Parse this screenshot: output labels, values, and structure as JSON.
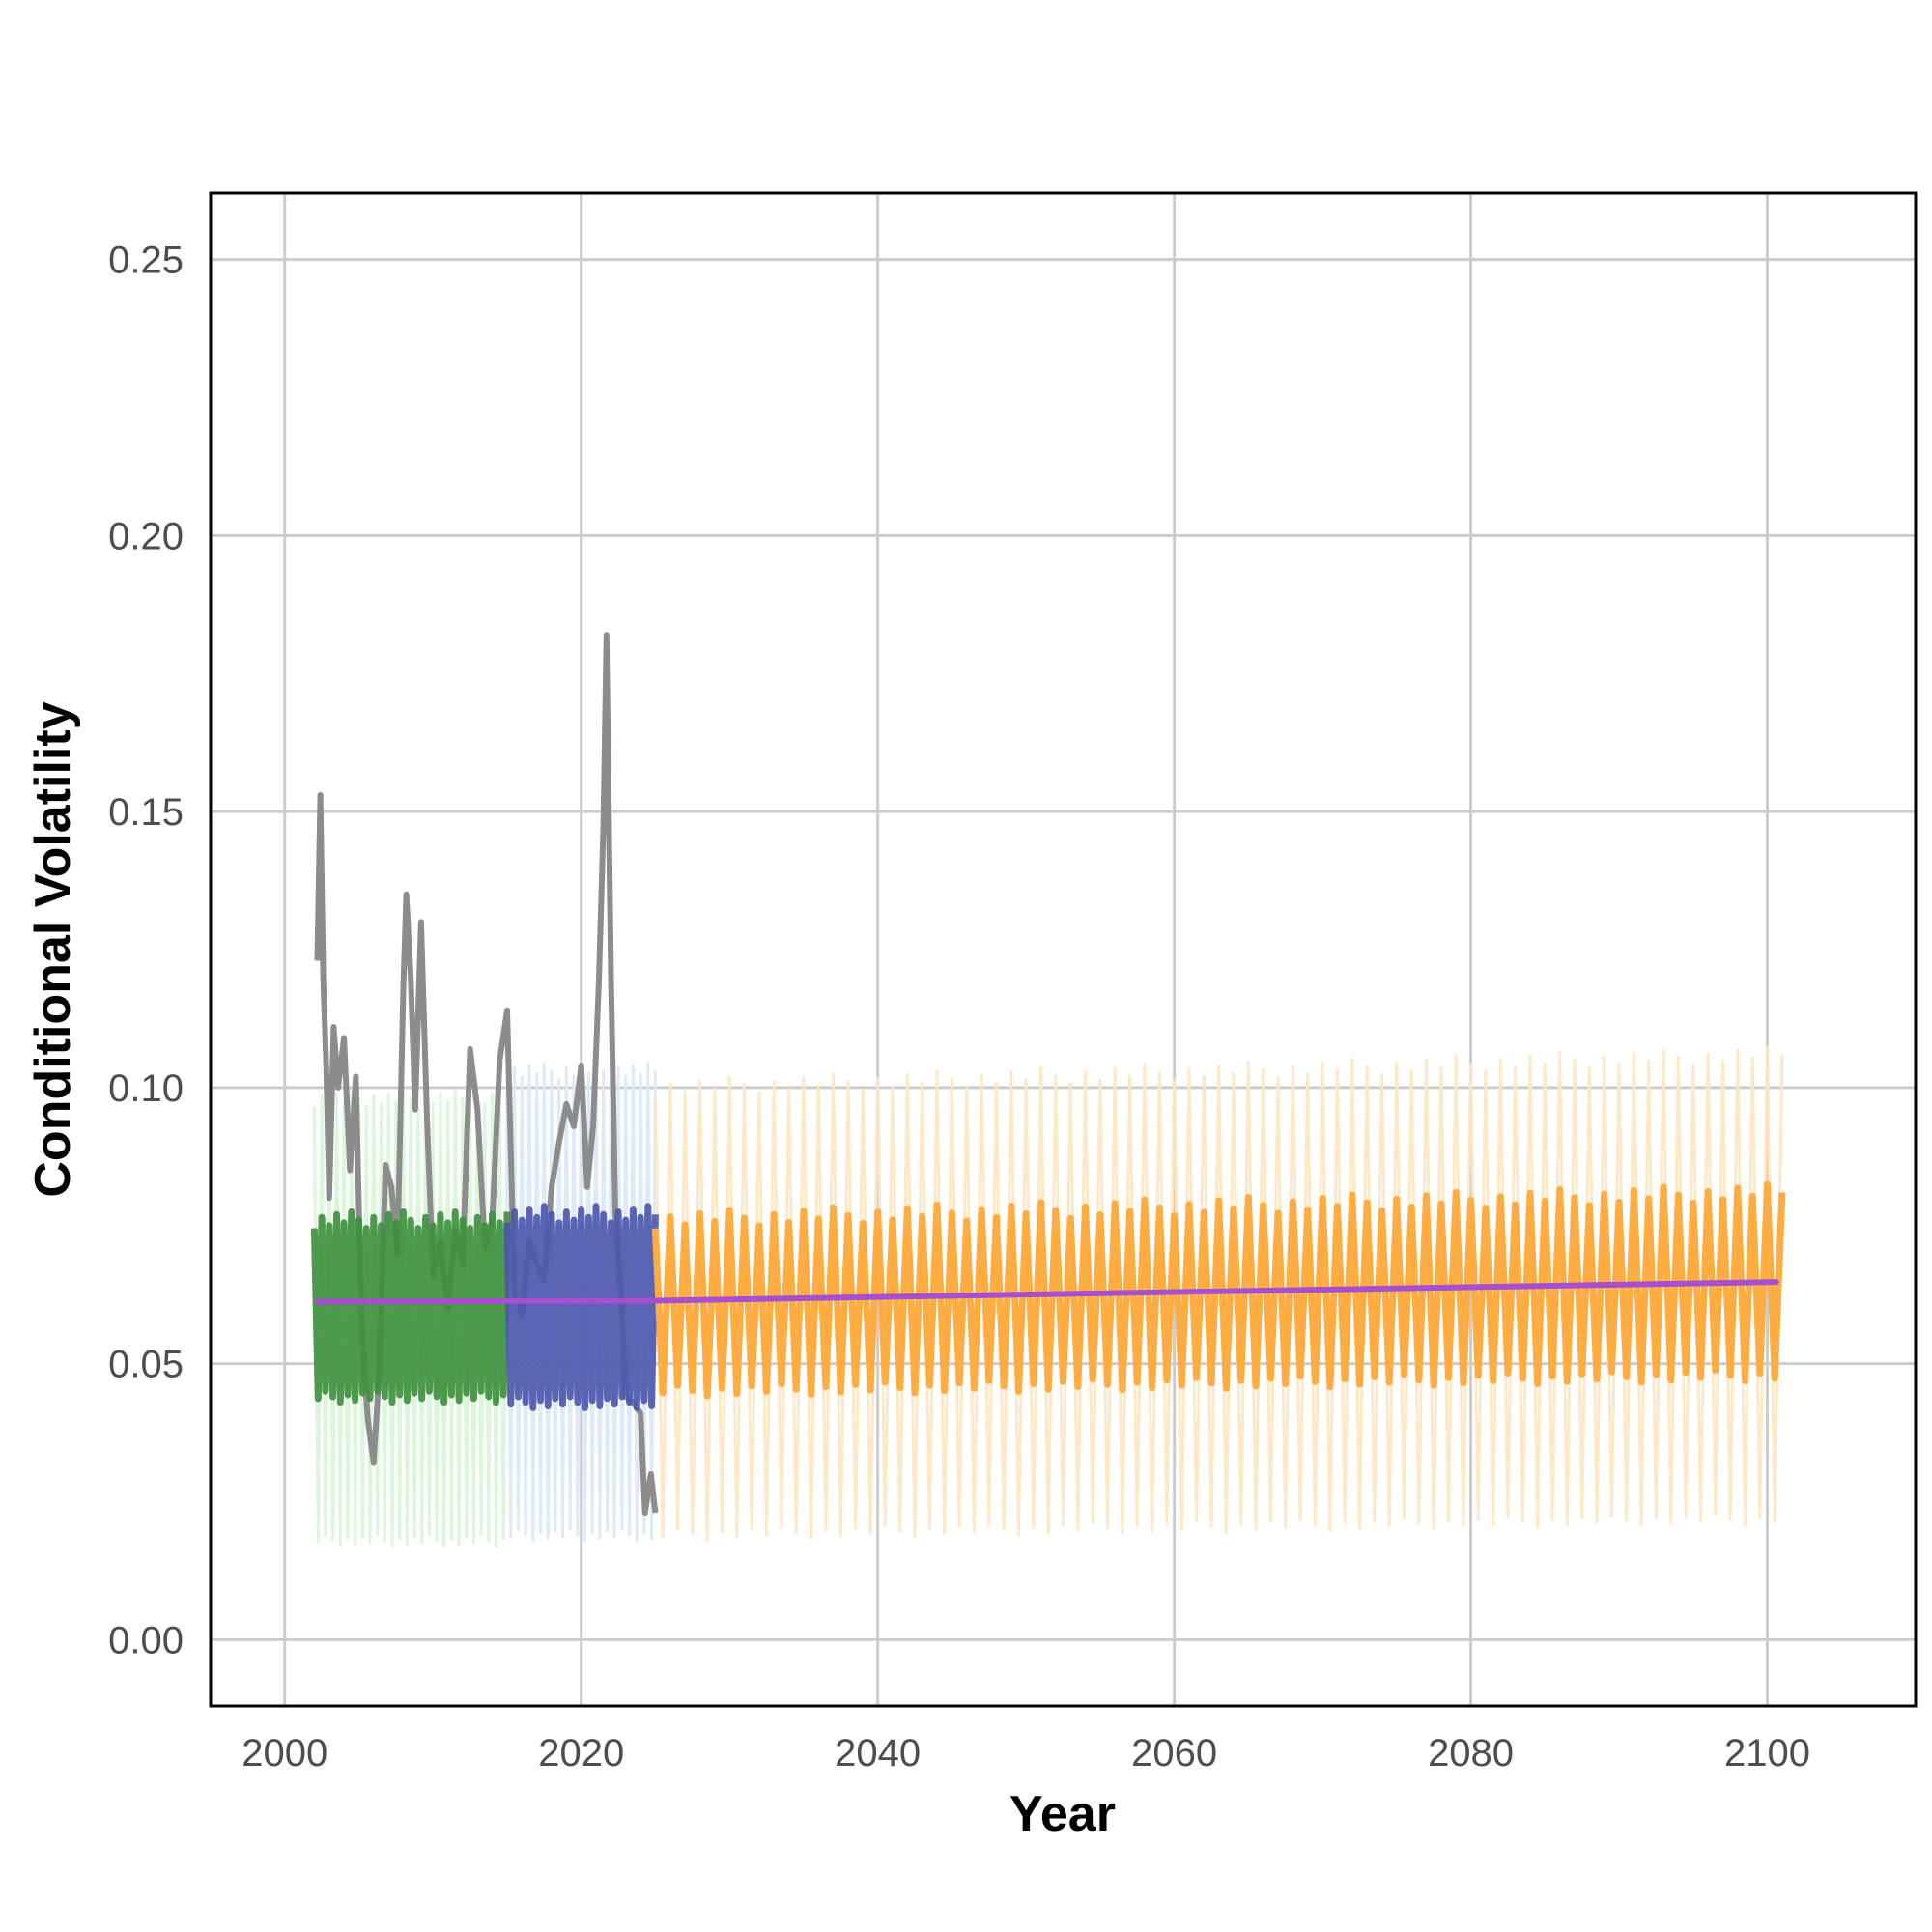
{
  "chart_data": {
    "type": "line",
    "title": "",
    "xlabel": "Year",
    "ylabel": "Conditional Volatility",
    "xlim": [
      1995,
      2110
    ],
    "ylim": [
      -0.012,
      0.262
    ],
    "x_ticks": [
      2000,
      2020,
      2040,
      2060,
      2080,
      2100
    ],
    "x_tick_labels": [
      "2000",
      "2020",
      "2040",
      "2060",
      "2080",
      "2100"
    ],
    "y_ticks": [
      0.0,
      0.05,
      0.1,
      0.15,
      0.2,
      0.25
    ],
    "y_tick_labels": [
      "0.00",
      "0.05",
      "0.10",
      "0.15",
      "0.20",
      "0.25"
    ],
    "grid": true,
    "legend": "none",
    "series": [
      {
        "kind": "observed",
        "color": "#8c8c8c",
        "x": [
          2002.2,
          2002.4,
          2002.6,
          2002.8,
          2003.0,
          2003.3,
          2003.6,
          2004.0,
          2004.4,
          2004.8,
          2005.2,
          2005.6,
          2006.0,
          2006.4,
          2006.8,
          2007.2,
          2007.6,
          2008.0,
          2008.2,
          2008.5,
          2008.8,
          2009.2,
          2009.6,
          2010.0,
          2010.5,
          2011.0,
          2011.5,
          2012.0,
          2012.5,
          2013.0,
          2013.5,
          2014.0,
          2014.5,
          2015.0,
          2015.5,
          2016.0,
          2016.5,
          2017.0,
          2017.5,
          2018.0,
          2018.5,
          2019.0,
          2019.5,
          2020.0,
          2020.4,
          2020.8,
          2021.2,
          2021.5,
          2021.7,
          2022.0,
          2022.3,
          2022.7,
          2023.0,
          2023.5,
          2024.0,
          2024.3,
          2024.7,
          2025.0
        ],
        "values": [
          0.123,
          0.153,
          0.12,
          0.104,
          0.08,
          0.111,
          0.1,
          0.109,
          0.085,
          0.102,
          0.056,
          0.04,
          0.032,
          0.05,
          0.086,
          0.082,
          0.07,
          0.118,
          0.135,
          0.12,
          0.096,
          0.13,
          0.094,
          0.066,
          0.072,
          0.06,
          0.074,
          0.068,
          0.107,
          0.096,
          0.071,
          0.076,
          0.105,
          0.114,
          0.063,
          0.059,
          0.072,
          0.068,
          0.065,
          0.082,
          0.09,
          0.097,
          0.093,
          0.104,
          0.082,
          0.093,
          0.12,
          0.148,
          0.182,
          0.121,
          0.077,
          0.062,
          0.044,
          0.043,
          0.041,
          0.023,
          0.03,
          0.023
        ]
      },
      {
        "kind": "fitted",
        "color": "#3c8f3c",
        "band_color": "#d8f5d8",
        "x_start": 2002.0,
        "x_end": 2015.0,
        "period": 0.5,
        "high": 0.076,
        "low": 0.044,
        "band_high": 0.098,
        "band_low": 0.018
      },
      {
        "kind": "fitted",
        "color": "#4b55ad",
        "band_color": "#dbe8f8",
        "x_start": 2015.0,
        "x_end": 2025.0,
        "period": 0.5,
        "high": 0.077,
        "low": 0.043,
        "band_high": 0.103,
        "band_low": 0.019
      },
      {
        "kind": "forecast",
        "color": "#ffad42",
        "band_color": "#fde6c1",
        "x_start": 2025.0,
        "x_end": 2101.0,
        "period": 1.0,
        "high_start": 0.076,
        "high_end": 0.081,
        "low_start": 0.045,
        "low_end": 0.048,
        "band_high_start": 0.1,
        "band_high_end": 0.106,
        "band_low_start": 0.019,
        "band_low_end": 0.022
      },
      {
        "kind": "trend",
        "color": "#a64fcf",
        "x": [
          2002.2,
          2025.0,
          2100.6
        ],
        "values": [
          0.0612,
          0.0614,
          0.0648
        ]
      }
    ]
  }
}
